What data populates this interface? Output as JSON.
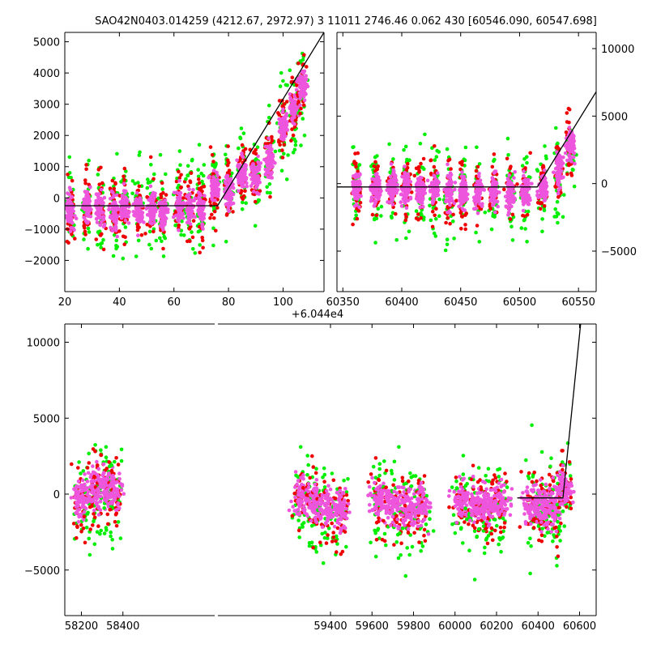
{
  "title": "SAO42N0403.014259 (4212.67, 2972.97)  3 11011 2746.46 0.062 430 [60546.090, 60547.698]",
  "colors": {
    "magenta": "#ee55dd",
    "red": "#ee0000",
    "green": "#00ee00",
    "model": "#000000"
  },
  "chart_data": [
    {
      "panel": "top-left",
      "type": "scatter",
      "x_offset_label": "+6.044e4",
      "xlim": [
        20,
        115
      ],
      "ylim": [
        -3000,
        5300
      ],
      "x_ticks": [
        20,
        40,
        60,
        80,
        100
      ],
      "y_ticks": [
        -2000,
        -1000,
        0,
        1000,
        2000,
        3000,
        4000,
        5000
      ],
      "x_tick_labels": [
        "20",
        "40",
        "60",
        "80",
        "100"
      ],
      "y_tick_labels": [
        "−2000",
        "−1000",
        "0",
        "1000",
        "2000",
        "3000",
        "4000",
        "5000"
      ],
      "groups": [
        {
          "x": 22,
          "y": -400
        },
        {
          "x": 28,
          "y": -300
        },
        {
          "x": 33,
          "y": -300
        },
        {
          "x": 38,
          "y": -400
        },
        {
          "x": 42,
          "y": -300
        },
        {
          "x": 47,
          "y": -400
        },
        {
          "x": 52,
          "y": -300
        },
        {
          "x": 56,
          "y": -500
        },
        {
          "x": 62,
          "y": -300
        },
        {
          "x": 66,
          "y": -300
        },
        {
          "x": 70,
          "y": -300
        },
        {
          "x": 75,
          "y": 300
        },
        {
          "x": 80,
          "y": 200
        },
        {
          "x": 85,
          "y": 800
        },
        {
          "x": 90,
          "y": 700
        },
        {
          "x": 95,
          "y": 1200
        },
        {
          "x": 100,
          "y": 2300
        },
        {
          "x": 104,
          "y": 2900
        },
        {
          "x": 107,
          "y": 3600
        }
      ],
      "model": {
        "x": [
          20,
          76,
          115
        ],
        "y": [
          -250,
          -250,
          5300
        ]
      }
    },
    {
      "panel": "top-right",
      "type": "scatter",
      "xlim": [
        60345,
        60565
      ],
      "ylim": [
        -8000,
        11200
      ],
      "x_ticks": [
        60350,
        60400,
        60450,
        60500,
        60550
      ],
      "y_ticks": [
        -5000,
        0,
        5000,
        10000
      ],
      "x_tick_labels": [
        "60350",
        "60400",
        "60450",
        "60500",
        "60550"
      ],
      "y_tick_labels": [
        "−5000",
        "0",
        "5000",
        "10000"
      ],
      "groups": [
        {
          "x": 60362,
          "y": -300
        },
        {
          "x": 60378,
          "y": -300
        },
        {
          "x": 60392,
          "y": -200
        },
        {
          "x": 60404,
          "y": -400
        },
        {
          "x": 60416,
          "y": -500
        },
        {
          "x": 60428,
          "y": -400
        },
        {
          "x": 60440,
          "y": -500
        },
        {
          "x": 60452,
          "y": -600
        },
        {
          "x": 60465,
          "y": -600
        },
        {
          "x": 60478,
          "y": -500
        },
        {
          "x": 60492,
          "y": -700
        },
        {
          "x": 60505,
          "y": -500
        },
        {
          "x": 60520,
          "y": -300
        },
        {
          "x": 60533,
          "y": 1000
        },
        {
          "x": 60543,
          "y": 2800
        }
      ],
      "model": {
        "x": [
          60345,
          60515,
          60565
        ],
        "y": [
          -250,
          -250,
          6800
        ]
      }
    },
    {
      "panel": "bottom",
      "type": "scatter",
      "xlim": [
        58120,
        60680
      ],
      "ylim": [
        -8000,
        11200
      ],
      "x_ticks": [
        58200,
        58400,
        59400,
        59600,
        59800,
        60000,
        60200,
        60400,
        60600
      ],
      "y_ticks": [
        -5000,
        0,
        5000,
        10000
      ],
      "x_tick_labels": [
        "58200",
        "58400",
        "59400",
        "59600",
        "59800",
        "60000",
        "60200",
        "60400",
        "60600"
      ],
      "y_tick_labels": [
        "−5000",
        "0",
        "5000",
        "10000"
      ],
      "groups": [
        {
          "x": 58200,
          "y": -400
        },
        {
          "x": 58260,
          "y": 200
        },
        {
          "x": 58310,
          "y": 600
        },
        {
          "x": 58360,
          "y": 100
        },
        {
          "x": 59260,
          "y": -100
        },
        {
          "x": 59320,
          "y": -600
        },
        {
          "x": 59380,
          "y": -900
        },
        {
          "x": 59450,
          "y": -1100
        },
        {
          "x": 59630,
          "y": -400
        },
        {
          "x": 59700,
          "y": -700
        },
        {
          "x": 59770,
          "y": -900
        },
        {
          "x": 59840,
          "y": -700
        },
        {
          "x": 60030,
          "y": -600
        },
        {
          "x": 60100,
          "y": -700
        },
        {
          "x": 60160,
          "y": -800
        },
        {
          "x": 60220,
          "y": -600
        },
        {
          "x": 60370,
          "y": -700
        },
        {
          "x": 60430,
          "y": -800
        },
        {
          "x": 60480,
          "y": -900
        },
        {
          "x": 60525,
          "y": 200
        }
      ],
      "model": {
        "x": [
          60300,
          60520,
          60605
        ],
        "y": [
          -250,
          -250,
          11200
        ]
      }
    }
  ]
}
